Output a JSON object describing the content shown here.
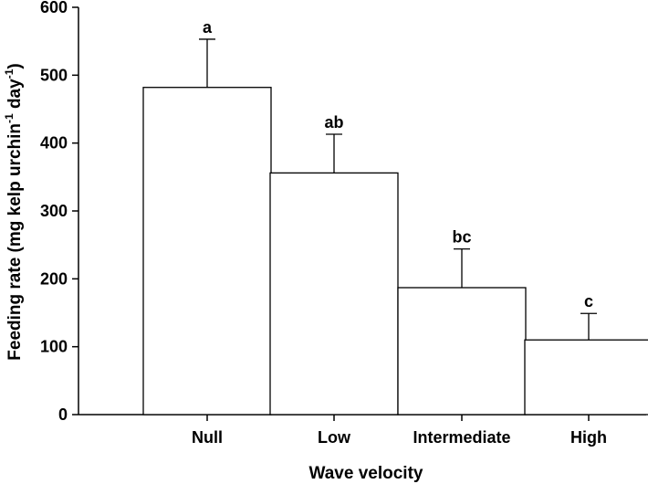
{
  "chart_data": {
    "type": "bar",
    "title": "",
    "categories": [
      "Null",
      "Low",
      "Intermediate",
      "High"
    ],
    "values": [
      482,
      356,
      187,
      110
    ],
    "error_upper": [
      553,
      413,
      244,
      149
    ],
    "significance_labels": [
      "a",
      "ab",
      "bc",
      "c"
    ],
    "xlabel": "Wave velocity",
    "ylabel": {
      "main": "Feeding rate (mg kelp urchin",
      "sup1": "-1",
      "mid": " day",
      "sup2": "-1",
      "end": ")"
    },
    "ylim": [
      0,
      600
    ],
    "yticks": [
      "0",
      "100",
      "200",
      "300",
      "400",
      "500",
      "600"
    ],
    "grid": false,
    "colors": {
      "bar_fill": "#ffffff",
      "bar_stroke": "#000000",
      "axis": "#000000"
    }
  }
}
